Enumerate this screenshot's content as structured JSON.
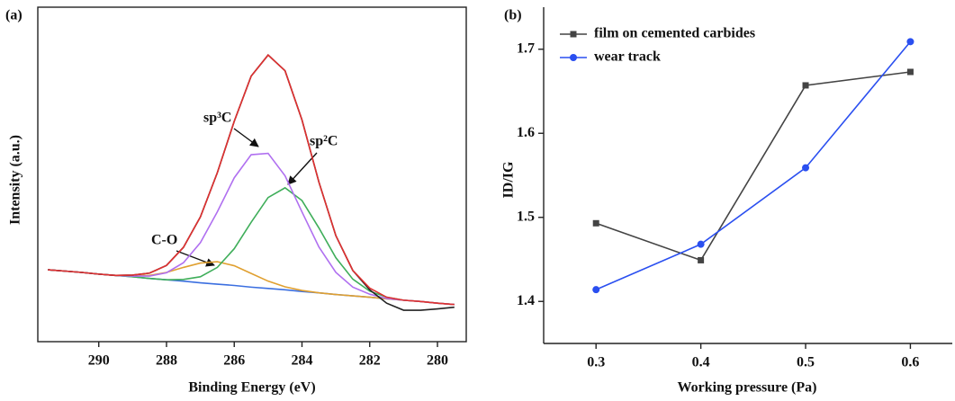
{
  "chart_data": [
    {
      "type": "line",
      "panel_label": "(a)",
      "x_label": "Binding Energy (eV)",
      "y_label": "Intensity (a.u.)",
      "xlim": [
        291.8,
        279.15
      ],
      "ylim": [
        0,
        100
      ],
      "xticks": [
        290,
        288,
        286,
        284,
        282,
        280
      ],
      "annotations": [
        "sp³C",
        "sp²C",
        "C-O"
      ],
      "x": [
        291.5,
        291,
        290.5,
        290,
        289.5,
        289,
        288.5,
        288,
        287.5,
        287,
        286.5,
        286,
        285.5,
        285,
        284.5,
        284,
        283.5,
        283,
        282.5,
        282,
        281.5,
        281,
        280.5,
        280,
        279.5
      ],
      "series": [
        {
          "color": "#3b6fe0",
          "values": [
            21.5,
            21.1,
            20.7,
            20.2,
            19.8,
            19.4,
            18.9,
            18.5,
            18.1,
            17.6,
            17.2,
            16.8,
            16.3,
            15.9,
            15.5,
            15.0,
            14.6,
            14.1,
            13.7,
            13.3,
            12.8,
            12.4,
            12.0,
            11.5,
            11.1
          ]
        },
        {
          "color": "#e0a030",
          "values": [
            21.5,
            21.1,
            20.7,
            20.2,
            19.8,
            19.7,
            19.8,
            20.7,
            22.2,
            23.5,
            23.9,
            22.7,
            20.4,
            18.1,
            16.4,
            15.3,
            14.6,
            14.1,
            13.7,
            13.3,
            12.8,
            12.4,
            12.0,
            11.5,
            11.1
          ]
        },
        {
          "color": "#3fae5a",
          "values": [
            21.5,
            21.1,
            20.7,
            20.2,
            19.8,
            19.4,
            18.9,
            18.5,
            18.6,
            19.4,
            22.2,
            27.8,
            35.7,
            43.1,
            46.0,
            42.2,
            34.0,
            25.1,
            18.7,
            15.1,
            13.3,
            12.4,
            12.0,
            11.5,
            11.1
          ]
        },
        {
          "color": "#b070f0",
          "values": [
            21.5,
            21.1,
            20.7,
            20.2,
            19.8,
            19.6,
            19.6,
            20.6,
            23.6,
            29.6,
            38.8,
            49.0,
            55.9,
            56.3,
            49.6,
            38.8,
            28.3,
            20.7,
            16.3,
            14.2,
            12.9,
            12.4,
            12.0,
            11.5,
            11.1
          ]
        },
        {
          "color": "#222222",
          "values": [
            21.5,
            21.1,
            20.7,
            20.2,
            19.8,
            19.9,
            20.5,
            22.8,
            28.2,
            37.3,
            50.5,
            65.9,
            79.4,
            85.7,
            81.0,
            66.3,
            47.7,
            31.7,
            21.3,
            15.5,
            11.5,
            9.4,
            9.4,
            9.8,
            10.3
          ]
        },
        {
          "color": "#e03030",
          "values": [
            21.5,
            21.1,
            20.7,
            20.2,
            19.8,
            19.9,
            20.5,
            22.8,
            28.2,
            37.3,
            50.5,
            65.9,
            79.4,
            85.7,
            81.0,
            66.3,
            47.7,
            31.7,
            21.3,
            16.0,
            13.3,
            12.4,
            12.0,
            11.5,
            11.1
          ]
        }
      ]
    },
    {
      "type": "line",
      "panel_label": "(b)",
      "x_label": "Working pressure (Pa)",
      "y_label": "ID/IG",
      "xlim": [
        0.25,
        0.64
      ],
      "ylim": [
        1.35,
        1.75
      ],
      "xticks": [
        0.3,
        0.4,
        0.5,
        0.6
      ],
      "yticks": [
        1.4,
        1.5,
        1.6,
        1.7
      ],
      "legend": "upper left",
      "x": [
        0.3,
        0.4,
        0.5,
        0.6
      ],
      "series": [
        {
          "name": "film on cemented carbides",
          "color": "#444444",
          "marker": "square",
          "values": [
            1.493,
            1.449,
            1.657,
            1.673
          ]
        },
        {
          "name": "wear track",
          "color": "#2a4ff0",
          "marker": "circle",
          "values": [
            1.414,
            1.468,
            1.559,
            1.709
          ]
        }
      ]
    }
  ]
}
